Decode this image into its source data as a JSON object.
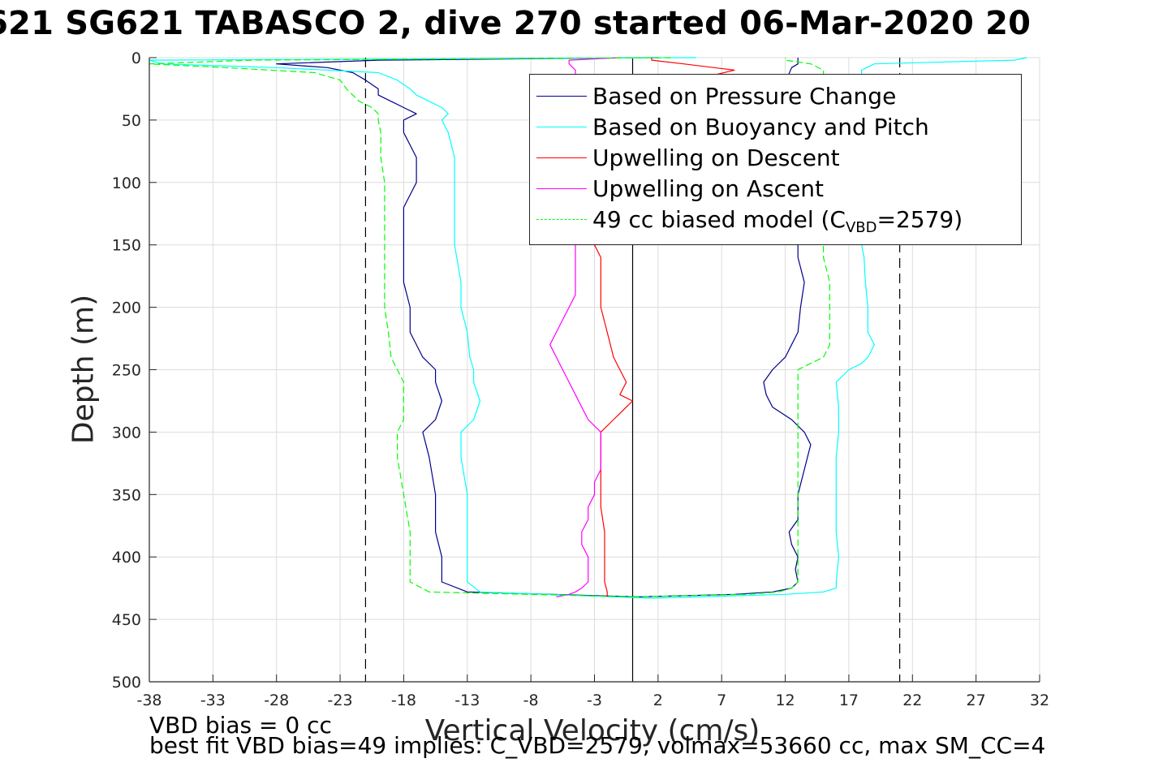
{
  "title": "621 SG621 TABASCO 2, dive 270 started 06-Mar-2020 20",
  "footnotes": {
    "line1": "VBD bias = 0 cc",
    "line2": "best fit VBD bias=49 implies: C_VBD=2579, volmax=53660 cc, max SM_CC=4"
  },
  "legend": {
    "items": [
      {
        "label": "Based on Pressure Change",
        "color": "#00008B",
        "dash": "solid"
      },
      {
        "label": "Based on Buoyancy and Pitch",
        "color": "#00FFFF",
        "dash": "solid"
      },
      {
        "label": "Upwelling on Descent",
        "color": "#FF0000",
        "dash": "solid"
      },
      {
        "label": "Upwelling on Ascent",
        "color": "#FF00FF",
        "dash": "solid"
      },
      {
        "label_main": "49 cc biased model (C",
        "label_sub": "VBD",
        "label_tail": "=2579)",
        "color": "#00FF00",
        "dash": "dashed"
      }
    ]
  },
  "chart_data": {
    "type": "line",
    "title": "621 SG621 TABASCO 2, dive 270 started 06-Mar-2020 20",
    "xlabel": "Vertical Velocity (cm/s)",
    "ylabel": "Depth (m)",
    "xlim": [
      -38,
      32
    ],
    "ylim": [
      0,
      500
    ],
    "y_reversed": true,
    "grid": true,
    "legend_position": "top-right",
    "x_ticks": [
      -38,
      -33,
      -28,
      -23,
      -18,
      -13,
      -8,
      -3,
      2,
      7,
      12,
      17,
      22,
      27,
      32
    ],
    "y_ticks": [
      0,
      50,
      100,
      150,
      200,
      250,
      300,
      350,
      400,
      450,
      500
    ],
    "reference_lines": [
      {
        "x": -21,
        "style": "dashed",
        "color": "#000000"
      },
      {
        "x": 21,
        "style": "dashed",
        "color": "#000000"
      },
      {
        "x": 0,
        "style": "solid",
        "color": "#000000"
      }
    ],
    "series": [
      {
        "name": "Based on Pressure Change",
        "color": "#00008B",
        "segments": [
          {
            "depth": [
              0,
              2,
              5,
              8,
              12,
              18,
              25,
              30,
              35,
              40,
              45,
              50,
              60,
              80,
              100,
              120,
              150,
              180,
              200,
              220,
              240,
              250,
              260,
              275,
              290,
              300,
              320,
              350,
              380,
              400,
              420,
              428,
              432
            ],
            "velocity": [
              2,
              -20,
              -28,
              -24,
              -22,
              -21,
              -20,
              -20,
              -19,
              -18,
              -17,
              -18,
              -18,
              -17,
              -17,
              -18,
              -18,
              -18,
              -17.5,
              -17.5,
              -16.5,
              -15.5,
              -15.5,
              -15,
              -15.5,
              -16.5,
              -16,
              -15.5,
              -15.5,
              -15,
              -15,
              -13,
              0.5
            ]
          },
          {
            "depth": [
              432,
              430,
              428,
              425,
              420,
              410,
              400,
              390,
              380,
              370,
              350,
              330,
              310,
              300,
              290,
              280,
              270,
              260,
              250,
              240,
              230,
              220,
              200,
              180,
              160,
              150,
              100,
              50,
              20,
              8,
              5,
              2,
              0
            ],
            "velocity": [
              0.5,
              8,
              11,
              12.5,
              13,
              12.8,
              13,
              12.5,
              12.3,
              13,
              13,
              13.5,
              14,
              13.5,
              12.5,
              11,
              10.5,
              10.3,
              11,
              12,
              12.5,
              13,
              13.2,
              13.5,
              13,
              13,
              13,
              12.5,
              12,
              12.5,
              13,
              13,
              13
            ]
          }
        ]
      },
      {
        "name": "Based on Buoyancy and Pitch",
        "color": "#00FFFF",
        "segments": [
          {
            "depth": [
              0,
              2,
              5,
              8,
              12,
              18,
              25,
              30,
              35,
              40,
              45,
              50,
              60,
              80,
              100,
              120,
              150,
              180,
              200,
              220,
              240,
              250,
              260,
              275,
              290,
              300,
              320,
              350,
              380,
              400,
              420,
              428,
              433
            ],
            "velocity": [
              5,
              -38,
              -37,
              -28,
              -20,
              -18.5,
              -17.5,
              -17,
              -16,
              -15,
              -14.5,
              -15,
              -14.5,
              -14,
              -14,
              -14,
              -14,
              -13.5,
              -13.5,
              -13,
              -12.8,
              -12.5,
              -12.5,
              -12,
              -12.5,
              -13.5,
              -13.5,
              -13,
              -13,
              -13,
              -13,
              -12,
              1.5
            ]
          },
          {
            "depth": [
              433,
              430,
              428,
              425,
              420,
              400,
              380,
              350,
              320,
              300,
              280,
              260,
              250,
              245,
              240,
              230,
              220,
              200,
              180,
              160,
              150,
              100,
              50,
              20,
              10,
              5,
              2,
              0
            ],
            "velocity": [
              1.5,
              12,
              15,
              16,
              16,
              16.2,
              16,
              16,
              16,
              16.2,
              16.2,
              16,
              17,
              18,
              18.5,
              19,
              18.5,
              18.5,
              18.3,
              18.2,
              18,
              18,
              18,
              18,
              18,
              19,
              30,
              31
            ]
          }
        ]
      },
      {
        "name": "Upwelling on Descent",
        "color": "#FF0000",
        "segments": [
          {
            "depth": [
              0,
              2,
              5,
              10,
              15,
              20,
              30,
              50,
              100,
              150,
              160,
              180,
              200,
              220,
              240,
              250,
              260,
              270,
              275,
              280,
              290,
              300,
              320,
              340,
              360,
              380,
              400,
              420,
              428,
              432
            ],
            "velocity": [
              1.5,
              1.5,
              4,
              8,
              6,
              4,
              2,
              1,
              0,
              -3,
              -2.5,
              -2.5,
              -2.5,
              -2,
              -1.5,
              -1,
              -0.5,
              -1,
              0,
              -0.5,
              -1.5,
              -2.5,
              -2.5,
              -2.5,
              -2.5,
              -2.2,
              -2.2,
              -2.2,
              -2,
              -2
            ]
          }
        ]
      },
      {
        "name": "Upwelling on Ascent",
        "color": "#FF00FF",
        "segments": [
          {
            "depth": [
              432,
              430,
              428,
              425,
              420,
              410,
              400,
              390,
              380,
              370,
              360,
              350,
              340,
              330,
              320,
              310,
              300,
              290,
              280,
              270,
              260,
              250,
              240,
              230,
              220,
              210,
              200,
              190,
              180,
              170,
              160,
              150,
              100,
              50,
              20,
              10,
              5,
              2,
              0
            ],
            "velocity": [
              -6,
              -5,
              -4.5,
              -4,
              -3.5,
              -3.5,
              -3.5,
              -4,
              -4,
              -3.5,
              -3.5,
              -3,
              -3,
              -2.5,
              -2.5,
              -2.5,
              -2.5,
              -3.5,
              -4,
              -4.5,
              -5,
              -5.5,
              -6,
              -6.5,
              -6,
              -5.5,
              -5,
              -4.5,
              -4.5,
              -4.5,
              -4.5,
              -4.5,
              -4.5,
              -4.5,
              -4.5,
              -4.5,
              -5,
              -5,
              -1
            ]
          }
        ]
      },
      {
        "name": "49 cc biased model (C_VBD=2579)",
        "color": "#00FF00",
        "dashed": true,
        "segments": [
          {
            "depth": [
              0,
              2,
              5,
              8,
              12,
              18,
              25,
              30,
              35,
              40,
              45,
              50,
              60,
              80,
              100,
              120,
              150,
              180,
              200,
              220,
              240,
              250,
              260,
              275,
              290,
              300,
              320,
              350,
              380,
              400,
              420,
              428,
              432
            ],
            "velocity": [
              3,
              -30,
              -38,
              -32,
              -25,
              -23,
              -22.5,
              -22,
              -21.5,
              -20.5,
              -20,
              -20,
              -19.8,
              -19.8,
              -19.5,
              -19.5,
              -19.5,
              -19.5,
              -19.5,
              -19.2,
              -19,
              -18.5,
              -18,
              -18,
              -18,
              -18.5,
              -18.5,
              -18,
              -17.5,
              -17.5,
              -17.5,
              -16,
              0
            ]
          },
          {
            "depth": [
              432,
              430,
              428,
              425,
              420,
              400,
              380,
              350,
              320,
              300,
              280,
              260,
              250,
              245,
              240,
              230,
              200,
              180,
              160,
              150,
              100,
              50,
              20,
              10,
              5,
              2,
              0
            ],
            "velocity": [
              0,
              9,
              11.5,
              12.5,
              13,
              13,
              13,
              13,
              13,
              13,
              13,
              13,
              13,
              14,
              15,
              15.5,
              15.5,
              15.5,
              15,
              15,
              15,
              15,
              15,
              15,
              14,
              12,
              12
            ]
          }
        ]
      }
    ]
  }
}
